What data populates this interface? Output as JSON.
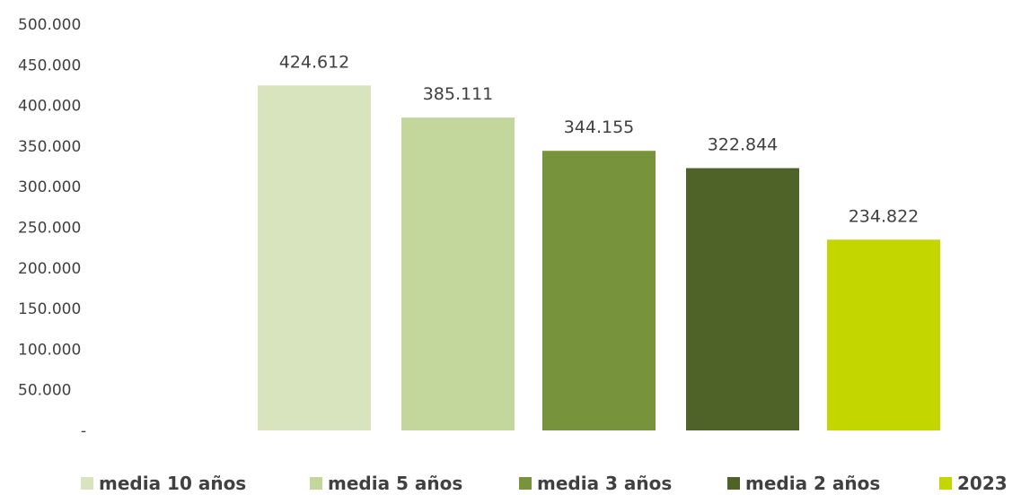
{
  "chart_data": {
    "type": "bar",
    "title": "",
    "xlabel": "",
    "ylabel": "",
    "ylim": [
      0,
      500000
    ],
    "grid": false,
    "legend_position": "bottom",
    "y_ticks": [
      {
        "value": 500000,
        "label": "500.000"
      },
      {
        "value": 450000,
        "label": "450.000"
      },
      {
        "value": 400000,
        "label": "400.000"
      },
      {
        "value": 350000,
        "label": "350.000"
      },
      {
        "value": 300000,
        "label": "300.000"
      },
      {
        "value": 250000,
        "label": "250.000"
      },
      {
        "value": 200000,
        "label": "200.000"
      },
      {
        "value": 150000,
        "label": "150.000"
      },
      {
        "value": 100000,
        "label": "100.000"
      },
      {
        "value": 50000,
        "label": "50.000"
      },
      {
        "value": 0,
        "label": "-"
      }
    ],
    "series": [
      {
        "name": "media 10 años",
        "value": 424612,
        "label": "424.612",
        "color": "#d7e4bd"
      },
      {
        "name": "media 5 años",
        "value": 385111,
        "label": "385.111",
        "color": "#c3d69b"
      },
      {
        "name": "media 3 años",
        "value": 344155,
        "label": "344.155",
        "color": "#77933c"
      },
      {
        "name": "media 2 años",
        "value": 322844,
        "label": "322.844",
        "color": "#4f6228"
      },
      {
        "name": "2023",
        "value": 234822,
        "label": "234.822",
        "color": "#c4d600"
      }
    ]
  }
}
